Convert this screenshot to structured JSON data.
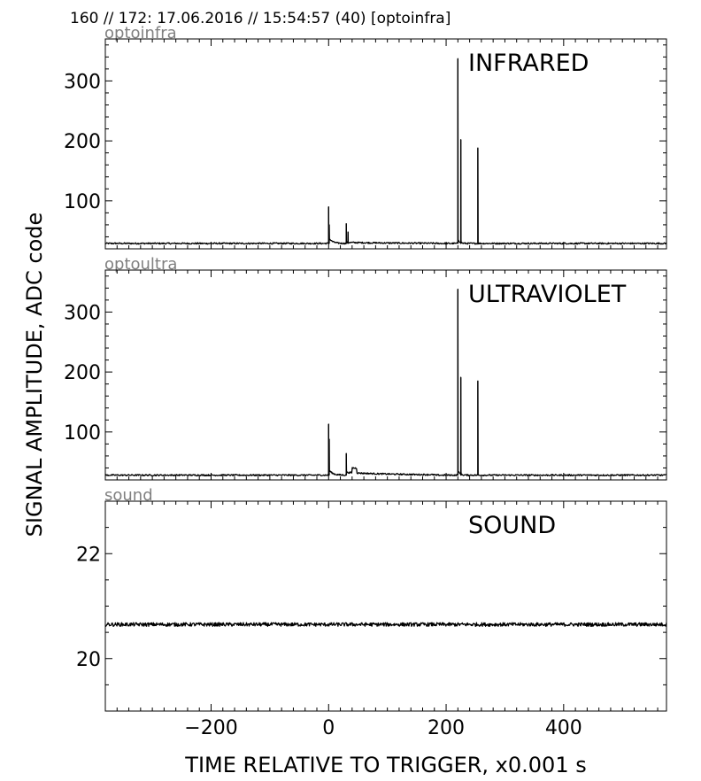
{
  "header": "160 // 172:   17.06.2016 // 15:54:57 (40)  [optoinfra]",
  "ylabel": "SIGNAL AMPLITUDE,  ADC code",
  "xlabel": "TIME RELATIVE TO TRIGGER,   x0.001 s",
  "chart_data": [
    {
      "type": "line",
      "channel": "optoinfra",
      "title": "INFRARED",
      "xlim": [
        -380,
        575
      ],
      "ylim": [
        20,
        370
      ],
      "x_ticks": [
        -200,
        0,
        200,
        400
      ],
      "y_ticks": [
        100,
        200,
        300
      ],
      "baseline": 29,
      "peaks": [
        {
          "x": 0,
          "y": 90
        },
        {
          "x": 1,
          "y": 60
        },
        {
          "x": 30,
          "y": 62
        },
        {
          "x": 33,
          "y": 48
        },
        {
          "x": 220,
          "y": 337
        },
        {
          "x": 225,
          "y": 202
        },
        {
          "x": 254,
          "y": 188
        }
      ]
    },
    {
      "type": "line",
      "channel": "optoultra",
      "title": "ULTRAVIOLET",
      "xlim": [
        -380,
        575
      ],
      "ylim": [
        20,
        370
      ],
      "x_ticks": [
        -200,
        0,
        200,
        400
      ],
      "y_ticks": [
        100,
        200,
        300
      ],
      "baseline": 28,
      "peaks": [
        {
          "x": 0,
          "y": 113
        },
        {
          "x": 1,
          "y": 88
        },
        {
          "x": 30,
          "y": 64
        },
        {
          "x": 220,
          "y": 338
        },
        {
          "x": 225,
          "y": 191
        },
        {
          "x": 254,
          "y": 185
        }
      ]
    },
    {
      "type": "line",
      "channel": "sound",
      "title": "SOUND",
      "xlim": [
        -380,
        575
      ],
      "ylim": [
        19,
        23
      ],
      "x_ticks": [
        -200,
        0,
        200,
        400
      ],
      "y_ticks": [
        20,
        22
      ],
      "x_tick_labels": [
        "−200",
        "0",
        "200",
        "400"
      ],
      "baseline": 20.65,
      "peaks": []
    }
  ]
}
